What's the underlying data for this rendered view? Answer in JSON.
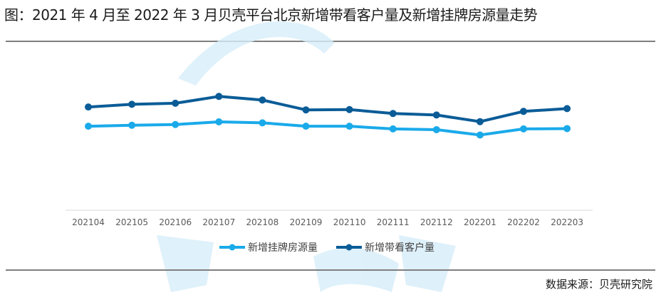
{
  "title": "图：2021 年 4 月至 2022 年 3 月贝壳平台北京新增带看客户量及新增挂牌房源量走势",
  "source": "数据来源：贝壳研究院",
  "colors": {
    "listing": "#1aaaea",
    "visits": "#0a5c97",
    "axis": "#d9d9d9",
    "tick": "#595959",
    "watermark": "#d7edf9"
  },
  "chart_data": {
    "type": "line",
    "categories": [
      "202104",
      "202105",
      "202106",
      "202107",
      "202108",
      "202109",
      "202110",
      "202111",
      "202112",
      "202201",
      "202202",
      "202203"
    ],
    "series": [
      {
        "name": "新增挂牌房源量",
        "color": "#1aaaea",
        "values": [
          47.9,
          48.8,
          49.5,
          52.0,
          51.1,
          47.9,
          47.9,
          45.4,
          44.7,
          39.7,
          45.4,
          45.7
        ]
      },
      {
        "name": "新增带看客户量",
        "color": "#0a5c97",
        "values": [
          65.9,
          68.4,
          69.4,
          75.8,
          72.4,
          63.2,
          63.5,
          59.8,
          58.4,
          52.2,
          61.8,
          64.4
        ]
      }
    ],
    "legend_position": "bottom",
    "grid": false,
    "y_axis_labels": false
  }
}
